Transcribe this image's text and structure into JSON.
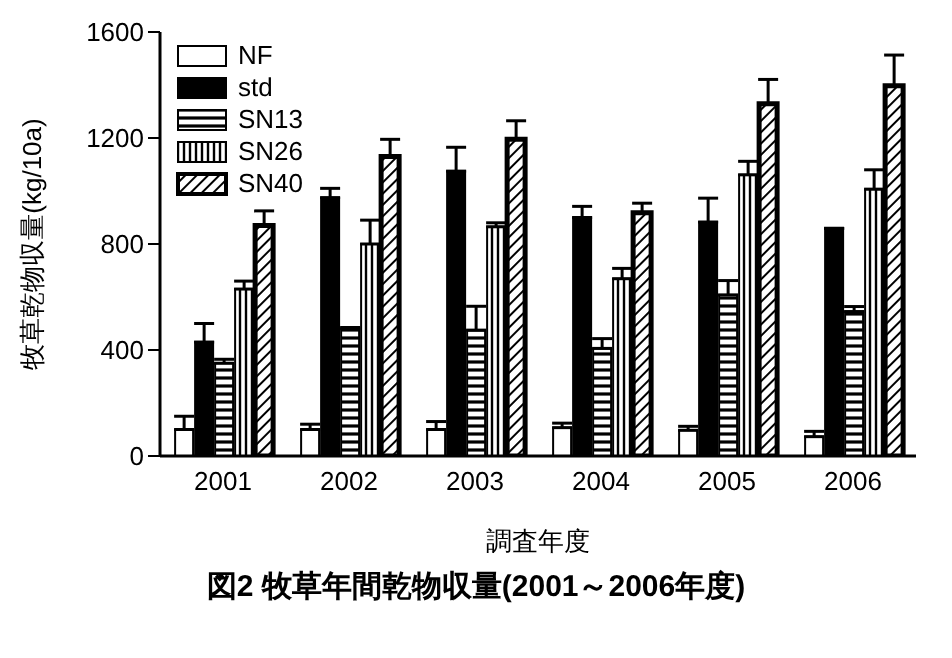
{
  "chart_data": {
    "type": "bar",
    "title": "図2  牧草年間乾物収量(2001～2006年度)",
    "xlabel": "調査年度",
    "ylabel": "牧草乾物収量(kg/10a)",
    "categories": [
      "2001",
      "2002",
      "2003",
      "2004",
      "2005",
      "2006"
    ],
    "series": [
      {
        "name": "NF",
        "color": "#ffffff",
        "values": [
          100,
          100,
          100,
          107,
          97,
          73
        ],
        "errors": [
          [
            100,
            150
          ],
          [
            100,
            120
          ],
          [
            100,
            130
          ],
          [
            107,
            124
          ],
          [
            97,
            112
          ],
          [
            73,
            93
          ]
        ]
      },
      {
        "name": "std",
        "color": "#000000",
        "values": [
          430,
          975,
          1075,
          900,
          883,
          859
        ],
        "errors": [
          [
            430,
            500
          ],
          [
            975,
            1010
          ],
          [
            1075,
            1165
          ],
          [
            900,
            942
          ],
          [
            883,
            973
          ],
          null
        ]
      },
      {
        "name": "SN13",
        "color": "#000000",
        "values": [
          350,
          480,
          475,
          406,
          608,
          545
        ],
        "errors": [
          [
            350,
            365
          ],
          [
            480,
            485
          ],
          [
            475,
            565
          ],
          [
            406,
            443
          ],
          [
            608,
            662
          ],
          [
            545,
            564
          ]
        ]
      },
      {
        "name": "SN26",
        "color": "#000000",
        "values": [
          630,
          800,
          865,
          669,
          1061,
          1007
        ],
        "errors": [
          [
            630,
            660
          ],
          [
            800,
            890
          ],
          [
            865,
            880
          ],
          [
            669,
            708
          ],
          [
            1061,
            1112
          ],
          [
            1007,
            1080
          ]
        ]
      },
      {
        "name": "SN40",
        "color": "#000000",
        "values": [
          870,
          1130,
          1195,
          918,
          1329,
          1397
        ],
        "errors": [
          [
            870,
            925
          ],
          [
            1130,
            1195
          ],
          [
            1195,
            1265
          ],
          [
            918,
            954
          ],
          [
            1329,
            1421
          ],
          [
            1397,
            1513
          ]
        ]
      }
    ],
    "ylim": [
      0,
      1600
    ],
    "yticks": [
      0,
      400,
      800,
      1200,
      1600
    ],
    "grid": false,
    "legend": "top left"
  }
}
